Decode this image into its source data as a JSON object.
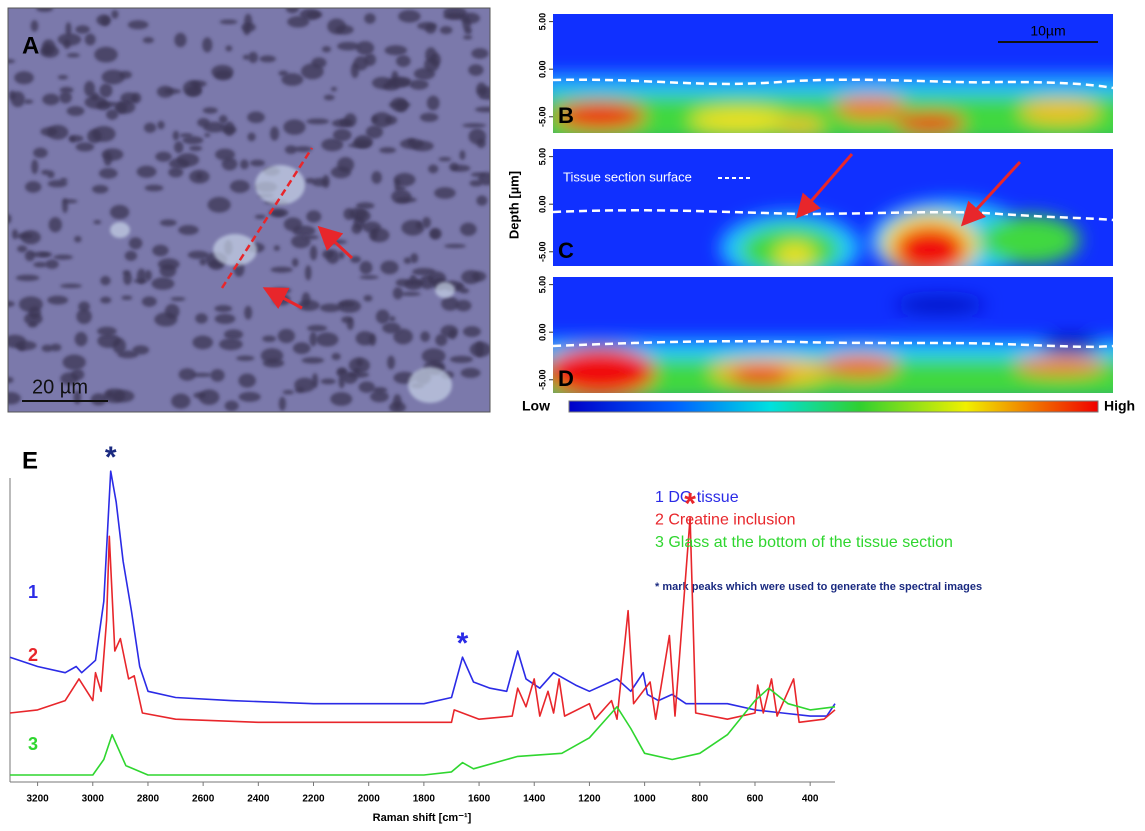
{
  "panel_a": {
    "label": "A",
    "scale_bar": "20 µm"
  },
  "depth_maps": {
    "y_label": "Depth [µm]",
    "ylim": [
      -6.6,
      5.8
    ],
    "yticks": [
      {
        "value": 5,
        "label": "5.00"
      },
      {
        "value": 0,
        "label": "0.00"
      },
      {
        "value": -5,
        "label": "-5.00"
      }
    ],
    "scale_bar": "10µm",
    "surface_label": "Tissue section surface",
    "panels": [
      {
        "label": "B"
      },
      {
        "label": "C"
      },
      {
        "label": "D"
      }
    ],
    "colorbar": {
      "low": "Low",
      "high": "High"
    }
  },
  "chart_data": {
    "type": "line",
    "panel_label": "E",
    "x_label": "Raman shift [cm⁻¹]",
    "xlim": [
      3300,
      310
    ],
    "xticks": [
      3200,
      3000,
      2800,
      2600,
      2400,
      2200,
      2000,
      1800,
      1600,
      1400,
      1200,
      1000,
      800,
      600,
      400
    ],
    "ylim": [
      0,
      100
    ],
    "series": [
      {
        "label": "1",
        "name": "DG tissue",
        "color": "#2b2be6",
        "x": [
          3300,
          3200,
          3100,
          3060,
          3040,
          2990,
          2960,
          2935,
          2915,
          2890,
          2860,
          2830,
          2800,
          2700,
          2500,
          2200,
          2000,
          1800,
          1700,
          1660,
          1620,
          1560,
          1500,
          1460,
          1430,
          1380,
          1330,
          1250,
          1200,
          1100,
          1050,
          1005,
          990,
          950,
          900,
          850,
          800,
          700,
          600,
          500,
          400,
          340,
          310
        ],
        "values": [
          38,
          35,
          33,
          35,
          33,
          37,
          56,
          98,
          88,
          69,
          53,
          35,
          27,
          25,
          24,
          23,
          23,
          23,
          25,
          38,
          30,
          28,
          27,
          40,
          31,
          28,
          33,
          29,
          27,
          31,
          27,
          33,
          26,
          24,
          26,
          23,
          23,
          23,
          21,
          20,
          19,
          19,
          23
        ]
      },
      {
        "label": "2",
        "name": "Creatine inclusion",
        "color": "#e8262b",
        "x": [
          3300,
          3200,
          3100,
          3050,
          3000,
          2990,
          2970,
          2950,
          2940,
          2920,
          2900,
          2870,
          2850,
          2820,
          2700,
          2400,
          2000,
          1700,
          1690,
          1660,
          1600,
          1480,
          1460,
          1430,
          1400,
          1380,
          1350,
          1330,
          1310,
          1290,
          1200,
          1180,
          1120,
          1100,
          1060,
          1040,
          980,
          960,
          910,
          890,
          835,
          815,
          700,
          600,
          590,
          570,
          540,
          520,
          460,
          440,
          350,
          310
        ],
        "values": [
          20,
          21,
          24,
          31,
          24,
          33,
          27,
          50,
          77,
          40,
          44,
          31,
          32,
          20,
          18,
          17,
          17,
          17,
          21,
          20,
          18,
          19,
          28,
          22,
          31,
          19,
          27,
          20,
          31,
          19,
          23,
          18,
          24,
          18,
          53,
          23,
          30,
          18,
          45,
          19,
          83,
          20,
          18,
          20,
          29,
          20,
          31,
          19,
          31,
          17,
          18,
          21
        ]
      },
      {
        "label": "3",
        "name": "Glass at the bottom of the tissue section",
        "color": "#2fd62f",
        "x": [
          3300,
          3000,
          2960,
          2930,
          2880,
          2800,
          1800,
          1700,
          1660,
          1620,
          1460,
          1300,
          1200,
          1130,
          1100,
          1050,
          1000,
          900,
          800,
          700,
          600,
          550,
          480,
          400,
          310
        ],
        "values": [
          0,
          0,
          5,
          13,
          3,
          0,
          0,
          1,
          4,
          2,
          6,
          7,
          12,
          19,
          22,
          15,
          7,
          5,
          7,
          13,
          24,
          28,
          23,
          21,
          22
        ]
      }
    ],
    "annotations": [
      {
        "text": "*",
        "x": 2935,
        "color": "#1a2a80"
      },
      {
        "text": "*",
        "x": 1660,
        "color": "#2b2be6"
      },
      {
        "text": "*",
        "x": 835,
        "color": "#e8262b"
      }
    ],
    "note": "* mark peaks which were used to generate the spectral images"
  }
}
